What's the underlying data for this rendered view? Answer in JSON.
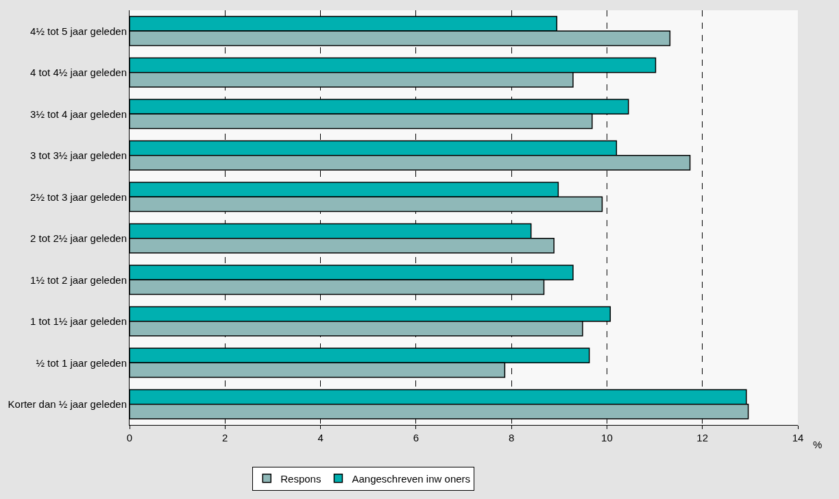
{
  "chart_data": {
    "type": "bar",
    "orientation": "horizontal",
    "xlabel": "%",
    "categories": [
      "4½ tot 5 jaar geleden",
      "4 tot 4½ jaar geleden",
      "3½ tot 4 jaar geleden",
      "3 tot 3½ jaar geleden",
      "2½ tot 3 jaar geleden",
      "2 tot 2½ jaar geleden",
      "1½ tot 2 jaar geleden",
      "1 tot 1½ jaar geleden",
      "½ tot 1 jaar geleden",
      "Korter dan ½ jaar geleden"
    ],
    "series": [
      {
        "name": "Aangeschreven inw oners",
        "color": "#00b0b0",
        "values": [
          8.95,
          11.02,
          10.45,
          10.2,
          8.98,
          8.41,
          9.29,
          10.07,
          9.63,
          12.92
        ]
      },
      {
        "name": "Respons",
        "color": "#8fb8b8",
        "values": [
          11.32,
          9.29,
          9.69,
          11.74,
          9.9,
          8.89,
          8.68,
          9.49,
          7.86,
          12.96
        ]
      }
    ],
    "xlim": [
      0,
      14
    ],
    "xticks": [
      0,
      2,
      4,
      6,
      8,
      10,
      12,
      14
    ],
    "grid": "x",
    "legend": "bottom"
  }
}
